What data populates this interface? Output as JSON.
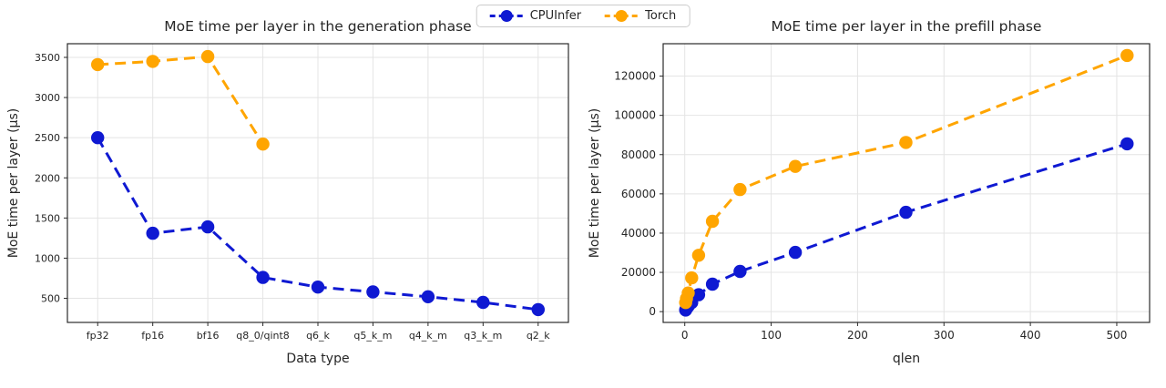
{
  "colors": {
    "cpuinfer": "#0f19d2",
    "torch": "#ffa500"
  },
  "legend": {
    "items": [
      {
        "label": "CPUInfer",
        "color_key": "cpuinfer"
      },
      {
        "label": "Torch",
        "color_key": "torch"
      }
    ]
  },
  "chart_data": [
    {
      "type": "line",
      "title": "MoE time per layer in the generation phase",
      "xlabel": "Data type",
      "ylabel": "MoE time per layer (µs)",
      "x_type": "categorical",
      "categories": [
        "fp32",
        "fp16",
        "bf16",
        "q8_0/qint8",
        "q6_k",
        "q5_k_m",
        "q4_k_m",
        "q3_k_m",
        "q2_k"
      ],
      "yticks": [
        500,
        1000,
        1500,
        2000,
        2500,
        3000,
        3500
      ],
      "ylim": [
        200,
        3670
      ],
      "grid": true,
      "line_style": "dashed",
      "marker": "circle",
      "series": [
        {
          "name": "CPUInfer",
          "color": "#0f19d2",
          "x": [
            0,
            1,
            2,
            3,
            4,
            5,
            6,
            7,
            8
          ],
          "y": [
            2500,
            1310,
            1390,
            760,
            640,
            580,
            520,
            450,
            360
          ]
        },
        {
          "name": "Torch",
          "color": "#ffa500",
          "x": [
            0,
            1,
            2,
            3
          ],
          "y": [
            3410,
            3450,
            3510,
            2420
          ]
        }
      ]
    },
    {
      "type": "line",
      "title": "MoE time per layer in the prefill phase",
      "xlabel": "qlen",
      "ylabel": "MoE time per layer (µs)",
      "x_type": "numeric",
      "xlim": [
        -25,
        538
      ],
      "xticks": [
        0,
        100,
        200,
        300,
        400,
        500
      ],
      "yticks": [
        0,
        20000,
        40000,
        60000,
        80000,
        100000,
        120000
      ],
      "ylim": [
        -5500,
        136500
      ],
      "grid": true,
      "line_style": "dashed",
      "marker": "circle",
      "series": [
        {
          "name": "CPUInfer",
          "color": "#0f19d2",
          "x": [
            1,
            2,
            4,
            8,
            16,
            32,
            64,
            128,
            256,
            512
          ],
          "y": [
            800,
            1600,
            2700,
            4600,
            8600,
            14000,
            20500,
            30200,
            50600,
            85500
          ]
        },
        {
          "name": "Torch",
          "color": "#ffa500",
          "x": [
            1,
            2,
            4,
            8,
            16,
            32,
            64,
            128,
            256,
            512
          ],
          "y": [
            4600,
            6600,
            9500,
            17200,
            28700,
            46000,
            62200,
            74000,
            86200,
            130500
          ]
        }
      ]
    }
  ]
}
